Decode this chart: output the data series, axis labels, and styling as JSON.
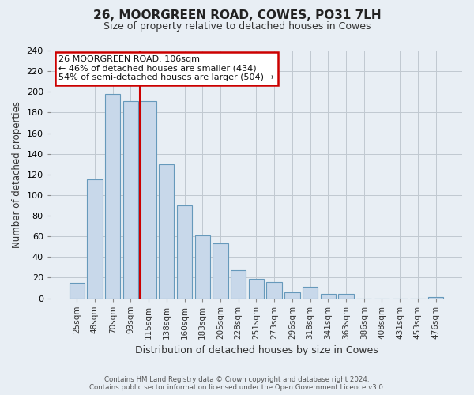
{
  "title": "26, MOORGREEN ROAD, COWES, PO31 7LH",
  "subtitle": "Size of property relative to detached houses in Cowes",
  "xlabel": "Distribution of detached houses by size in Cowes",
  "ylabel": "Number of detached properties",
  "categories": [
    "25sqm",
    "48sqm",
    "70sqm",
    "93sqm",
    "115sqm",
    "138sqm",
    "160sqm",
    "183sqm",
    "205sqm",
    "228sqm",
    "251sqm",
    "273sqm",
    "296sqm",
    "318sqm",
    "341sqm",
    "363sqm",
    "386sqm",
    "408sqm",
    "431sqm",
    "453sqm",
    "476sqm"
  ],
  "values": [
    15,
    115,
    198,
    191,
    191,
    130,
    90,
    61,
    53,
    27,
    19,
    16,
    6,
    11,
    4,
    4,
    0,
    0,
    0,
    0,
    1
  ],
  "bar_color": "#c8d8ea",
  "bar_edge_color": "#6699bb",
  "ylim": [
    0,
    240
  ],
  "yticks": [
    0,
    20,
    40,
    60,
    80,
    100,
    120,
    140,
    160,
    180,
    200,
    220,
    240
  ],
  "annotation_title": "26 MOORGREEN ROAD: 106sqm",
  "annotation_line1": "← 46% of detached houses are smaller (434)",
  "annotation_line2": "54% of semi-detached houses are larger (504) →",
  "annotation_box_color": "#ffffff",
  "annotation_box_edge_color": "#cc0000",
  "property_size_sqm": 106,
  "vline_x_index": 3.5,
  "footer_line1": "Contains HM Land Registry data © Crown copyright and database right 2024.",
  "footer_line2": "Contains public sector information licensed under the Open Government Licence v3.0.",
  "background_color": "#e8eef4",
  "plot_bg_color": "#e8eef4",
  "grid_color": "#c0c8d0",
  "vline_color": "#cc0000"
}
